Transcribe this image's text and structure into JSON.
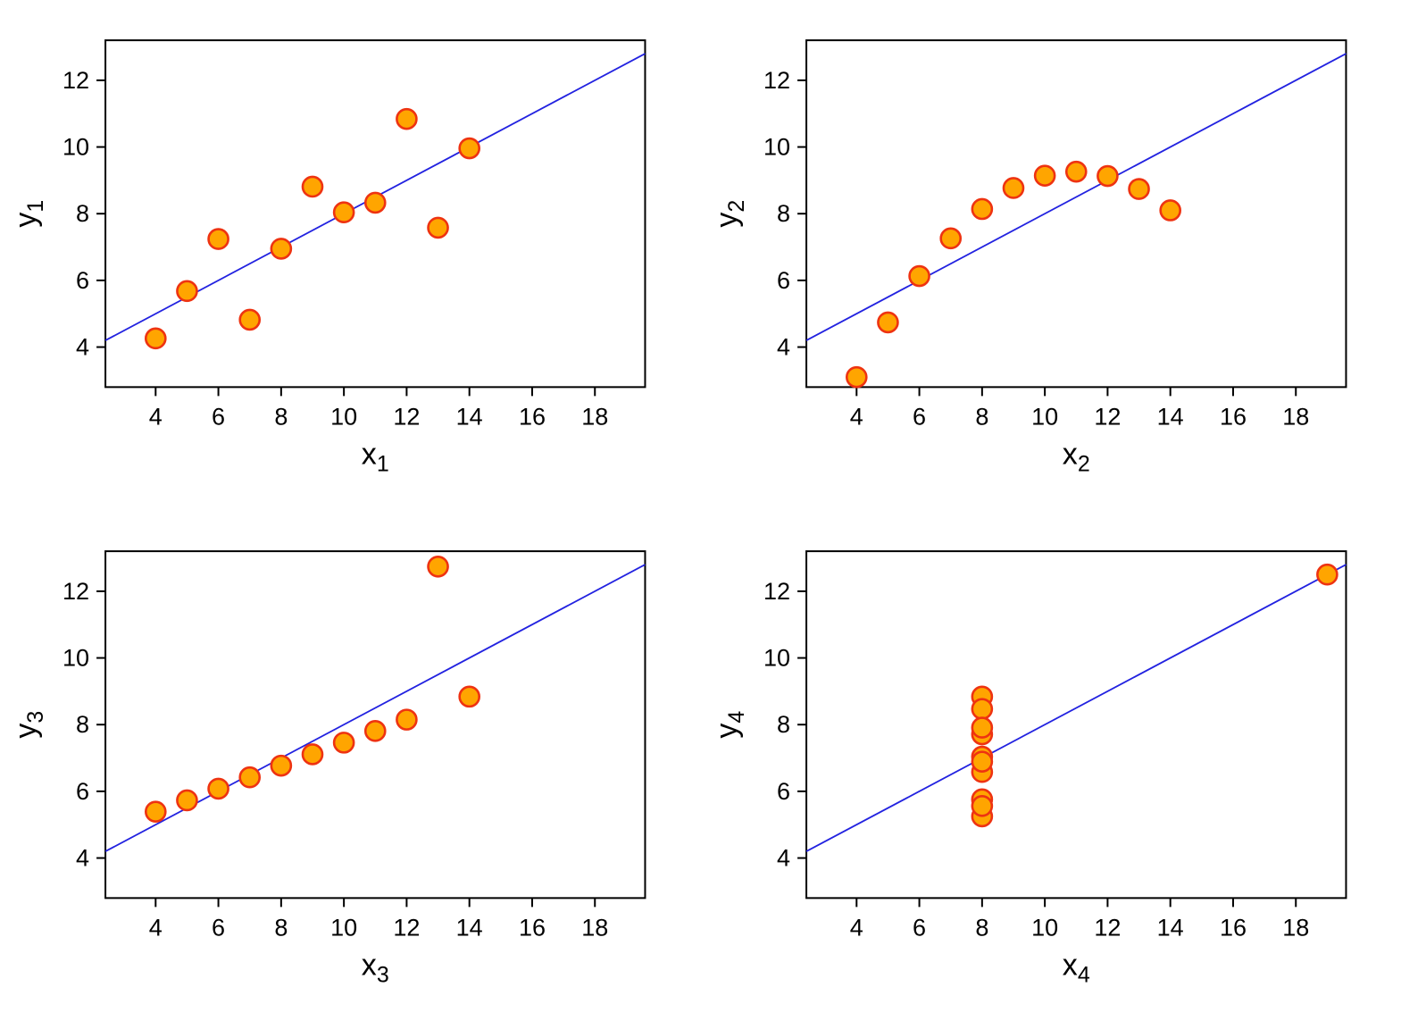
{
  "figure": {
    "background": "#FFFFFF",
    "point_fill": "#FFA500",
    "point_stroke": "#EE3311",
    "line_color": "#2222E0",
    "axis_color": "#000000",
    "text_color": "#000000"
  },
  "chart_data": [
    {
      "type": "scatter",
      "title": "",
      "xlabel": {
        "base": "x",
        "sub": "1"
      },
      "ylabel": {
        "base": "y",
        "sub": "1"
      },
      "x": [
        10,
        8,
        13,
        9,
        11,
        14,
        6,
        4,
        12,
        7,
        5
      ],
      "y": [
        8.04,
        6.95,
        7.58,
        8.81,
        8.33,
        9.96,
        7.24,
        4.26,
        10.84,
        4.82,
        5.68
      ],
      "xlim": [
        2.4,
        19.6
      ],
      "ylim": [
        2.8,
        13.2
      ],
      "xticks": [
        4,
        6,
        8,
        10,
        12,
        14,
        16,
        18
      ],
      "yticks": [
        4,
        6,
        8,
        10,
        12
      ],
      "fit_line": {
        "intercept": 3.0,
        "slope": 0.5
      },
      "grid": false,
      "legend": "none"
    },
    {
      "type": "scatter",
      "title": "",
      "xlabel": {
        "base": "x",
        "sub": "2"
      },
      "ylabel": {
        "base": "y",
        "sub": "2"
      },
      "x": [
        10,
        8,
        13,
        9,
        11,
        14,
        6,
        4,
        12,
        7,
        5
      ],
      "y": [
        9.14,
        8.14,
        8.74,
        8.77,
        9.26,
        8.1,
        6.13,
        3.1,
        9.13,
        7.26,
        4.74
      ],
      "xlim": [
        2.4,
        19.6
      ],
      "ylim": [
        2.8,
        13.2
      ],
      "xticks": [
        4,
        6,
        8,
        10,
        12,
        14,
        16,
        18
      ],
      "yticks": [
        4,
        6,
        8,
        10,
        12
      ],
      "fit_line": {
        "intercept": 3.0,
        "slope": 0.5
      },
      "grid": false,
      "legend": "none"
    },
    {
      "type": "scatter",
      "title": "",
      "xlabel": {
        "base": "x",
        "sub": "3"
      },
      "ylabel": {
        "base": "y",
        "sub": "3"
      },
      "x": [
        10,
        8,
        13,
        9,
        11,
        14,
        6,
        4,
        12,
        7,
        5
      ],
      "y": [
        7.46,
        6.77,
        12.74,
        7.11,
        7.81,
        8.84,
        6.08,
        5.39,
        8.15,
        6.42,
        5.73
      ],
      "xlim": [
        2.4,
        19.6
      ],
      "ylim": [
        2.8,
        13.2
      ],
      "xticks": [
        4,
        6,
        8,
        10,
        12,
        14,
        16,
        18
      ],
      "yticks": [
        4,
        6,
        8,
        10,
        12
      ],
      "fit_line": {
        "intercept": 3.0,
        "slope": 0.5
      },
      "grid": false,
      "legend": "none"
    },
    {
      "type": "scatter",
      "title": "",
      "xlabel": {
        "base": "x",
        "sub": "4"
      },
      "ylabel": {
        "base": "y",
        "sub": "4"
      },
      "x": [
        8,
        8,
        8,
        8,
        8,
        8,
        8,
        19,
        8,
        8,
        8
      ],
      "y": [
        6.58,
        5.76,
        7.71,
        8.84,
        8.47,
        7.04,
        5.25,
        12.5,
        5.56,
        7.91,
        6.89
      ],
      "xlim": [
        2.4,
        19.6
      ],
      "ylim": [
        2.8,
        13.2
      ],
      "xticks": [
        4,
        6,
        8,
        10,
        12,
        14,
        16,
        18
      ],
      "yticks": [
        4,
        6,
        8,
        10,
        12
      ],
      "fit_line": {
        "intercept": 3.0,
        "slope": 0.5
      },
      "grid": false,
      "legend": "none"
    }
  ]
}
